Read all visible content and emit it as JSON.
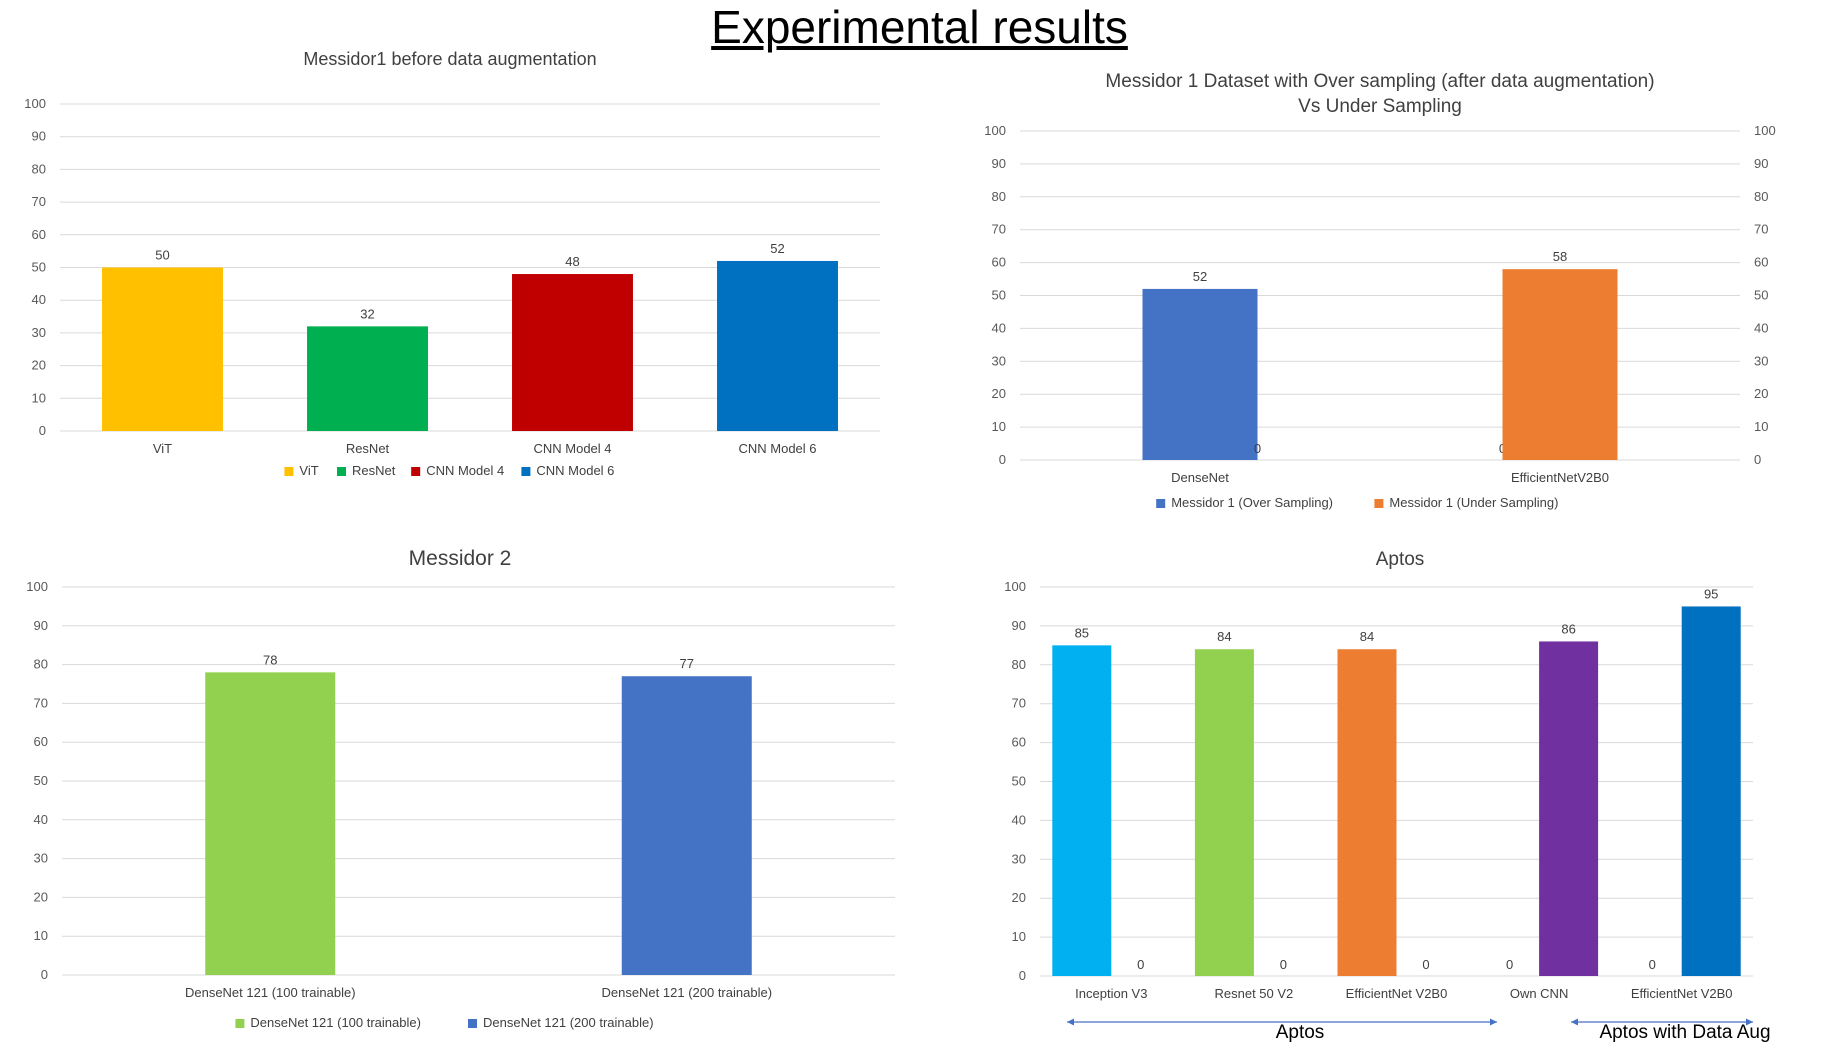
{
  "page": {
    "title": "Experimental results"
  },
  "chart_data": [
    {
      "type": "bar",
      "title": "Messidor1 before data augmentation",
      "categories": [
        "ViT",
        "ResNet",
        "CNN Model 4",
        "CNN Model 6"
      ],
      "series": [
        {
          "name": "ViT",
          "color": "#FFC000",
          "values": [
            50,
            null,
            null,
            null
          ]
        },
        {
          "name": "ResNet",
          "color": "#00B050",
          "values": [
            null,
            32,
            null,
            null
          ]
        },
        {
          "name": "CNN Model 4",
          "color": "#C00000",
          "values": [
            null,
            null,
            48,
            null
          ]
        },
        {
          "name": "CNN Model 6",
          "color": "#0070C0",
          "values": [
            null,
            null,
            null,
            52
          ]
        }
      ],
      "ylim": [
        0,
        100
      ],
      "yticks": [
        0,
        10,
        20,
        30,
        40,
        50,
        60,
        70,
        80,
        90,
        100
      ],
      "grid": true,
      "legend": "bottom"
    },
    {
      "type": "bar",
      "title": "Messidor 1 Dataset with Over sampling (after data augmentation)",
      "subtitle": "Vs Under Sampling",
      "categories": [
        "DenseNet",
        "EfficientNetV2B0"
      ],
      "series": [
        {
          "name": "Messidor 1 (Over Sampling)",
          "color": "#4472C4",
          "values": [
            52,
            0
          ]
        },
        {
          "name": "Messidor 1 (Under Sampling)",
          "color": "#ED7D31",
          "values": [
            0,
            58
          ]
        }
      ],
      "ylim": [
        0,
        100
      ],
      "yticks": [
        0,
        10,
        20,
        30,
        40,
        50,
        60,
        70,
        80,
        90,
        100
      ],
      "secondary_axis": true,
      "grid": true,
      "legend": "bottom"
    },
    {
      "type": "bar",
      "title": "Messidor 2",
      "categories": [
        "DenseNet 121 (100 trainable)",
        "DenseNet 121 (200 trainable)"
      ],
      "series": [
        {
          "name": "DenseNet 121 (100 trainable)",
          "color": "#92D050",
          "values": [
            78,
            null
          ]
        },
        {
          "name": "DenseNet 121 (200 trainable)",
          "color": "#4472C4",
          "values": [
            null,
            77
          ]
        }
      ],
      "ylim": [
        0,
        100
      ],
      "yticks": [
        0,
        10,
        20,
        30,
        40,
        50,
        60,
        70,
        80,
        90,
        100
      ],
      "grid": true,
      "legend": "bottom"
    },
    {
      "type": "bar",
      "title": "Aptos",
      "categories": [
        "Inception V3",
        "Resnet 50 V2",
        "EfficientNet V2B0",
        "Own CNN",
        "EfficientNet V2B0"
      ],
      "series": [
        {
          "name": "",
          "values": [
            85,
            84,
            84,
            0,
            0
          ],
          "colors": [
            "#00B0F0",
            "#92D050",
            "#ED7D31",
            "#7030A0",
            "#0070C0"
          ]
        },
        {
          "name": "",
          "values": [
            0,
            0,
            0,
            86,
            95
          ],
          "colors": [
            "#00B0F0",
            "#92D050",
            "#ED7D31",
            "#7030A0",
            "#0070C0"
          ]
        }
      ],
      "ylim": [
        0,
        100
      ],
      "yticks": [
        0,
        10,
        20,
        30,
        40,
        50,
        60,
        70,
        80,
        90,
        100
      ],
      "grid": true,
      "group_labels": [
        "Aptos",
        "Aptos with Data Aug"
      ]
    }
  ]
}
